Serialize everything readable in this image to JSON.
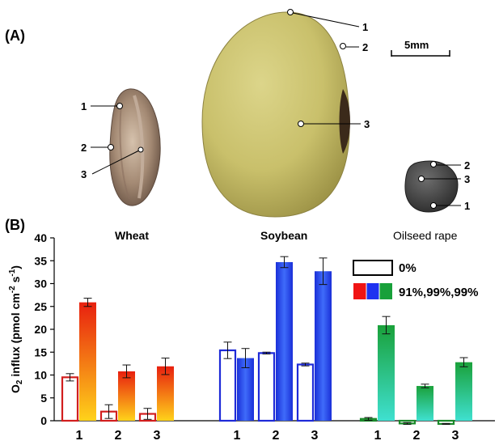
{
  "panel_a": {
    "label": "(A)",
    "scale_bar": "5mm",
    "wheat_points": [
      "1",
      "2",
      "3"
    ],
    "soybean_points": [
      "1",
      "2",
      "3"
    ],
    "rape_points": [
      "2",
      "3",
      "1"
    ]
  },
  "panel_b": {
    "label": "(B)"
  },
  "chart_data": {
    "type": "bar",
    "ylabel_main": "O",
    "ylabel_sub": "2",
    "ylabel_rest": " influx (pmol cm",
    "ylabel_exp1": "-2",
    "ylabel_mid": " s",
    "ylabel_exp2": "-1",
    "ylabel_end": ")",
    "ylim": [
      0,
      40
    ],
    "yticks": [
      "0",
      "5",
      "10",
      "15",
      "20",
      "25",
      "30",
      "35",
      "40"
    ],
    "groups": [
      "Wheat",
      "Soybean",
      "Oilseed rape"
    ],
    "categories": [
      "1",
      "2",
      "3"
    ],
    "legend": {
      "open": "0%",
      "filled": "91%,99%,99%"
    },
    "colors": {
      "wheat_top": "#e8200f",
      "wheat_bottom": "#ffd21a",
      "soy": "#1e3cf0",
      "soy_light": "#3d6df8",
      "rape_top": "#1aa13a",
      "rape_bottom": "#3fe0d0",
      "outline_red": "#d21e1e",
      "outline_blue": "#1e2ad8",
      "outline_green": "#1a8a2a"
    },
    "series": [
      {
        "group": "Wheat",
        "oxygen": "0%",
        "values": [
          9.5,
          2.0,
          1.5
        ],
        "errors": [
          0.8,
          1.5,
          1.2
        ]
      },
      {
        "group": "Wheat",
        "oxygen": "91%",
        "values": [
          25.9,
          10.8,
          11.9
        ],
        "errors": [
          0.9,
          1.4,
          1.8
        ]
      },
      {
        "group": "Soybean",
        "oxygen": "0%",
        "values": [
          15.4,
          14.8,
          12.3
        ],
        "errors": [
          1.8,
          0.2,
          0.3
        ]
      },
      {
        "group": "Soybean",
        "oxygen": "99%",
        "values": [
          13.7,
          34.7,
          32.7
        ],
        "errors": [
          2.1,
          1.2,
          2.9
        ]
      },
      {
        "group": "Oilseed rape",
        "oxygen": "0%",
        "values": [
          0.4,
          -0.6,
          -0.7
        ],
        "errors": [
          0.3,
          0.2,
          0.1
        ]
      },
      {
        "group": "Oilseed rape",
        "oxygen": "99%",
        "values": [
          20.9,
          7.6,
          12.8
        ],
        "errors": [
          1.9,
          0.4,
          1.0
        ]
      }
    ]
  }
}
